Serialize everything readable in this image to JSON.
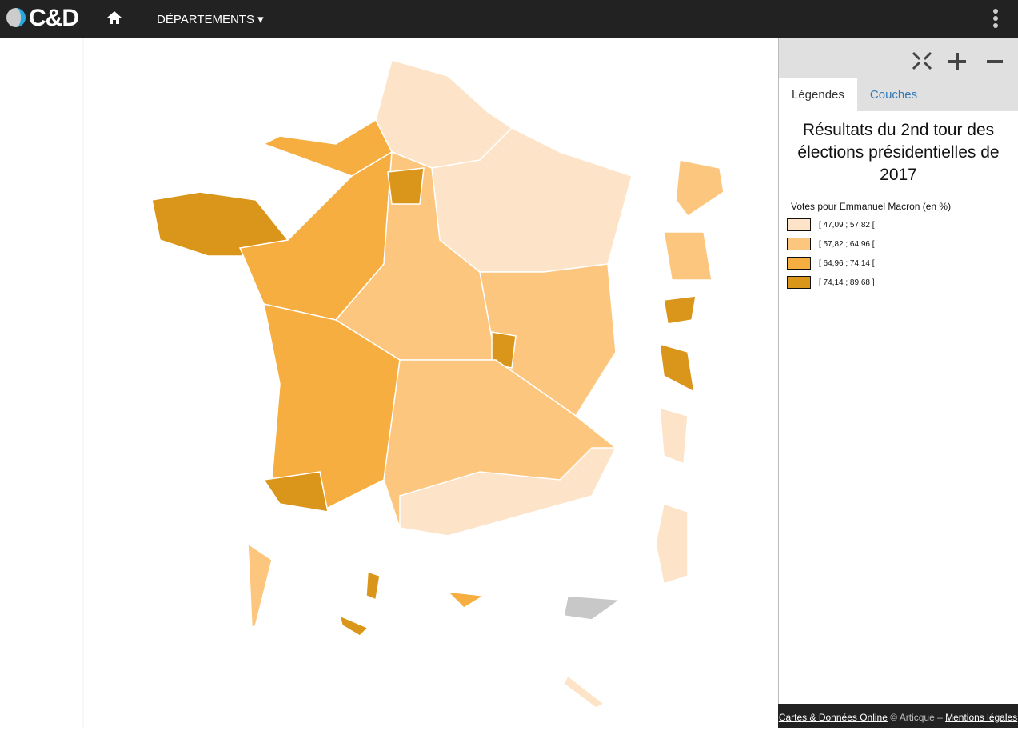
{
  "header": {
    "logo": "C&D",
    "menu": "DÉPARTEMENTS"
  },
  "panel": {
    "tabs": [
      "Légendes",
      "Couches"
    ],
    "title": "Résultats du 2nd tour des élections présidentielles de 2017",
    "legend": {
      "title": "Votes pour Emmanuel Macron (en %)",
      "items": [
        {
          "label": "[ 47,09 ; 57,82 [",
          "color": "#fde3c8"
        },
        {
          "label": "[ 57,82 ; 64,96 [",
          "color": "#fcc67e"
        },
        {
          "label": "[ 64,96 ; 74,14 [",
          "color": "#f5ae3f"
        },
        {
          "label": "[ 74,14 ; 89,68 ]",
          "color": "#d9961a"
        }
      ]
    }
  },
  "footer": {
    "link1": "Cartes & Données Online",
    "text": "© Articque –",
    "link2": "Mentions légales"
  }
}
